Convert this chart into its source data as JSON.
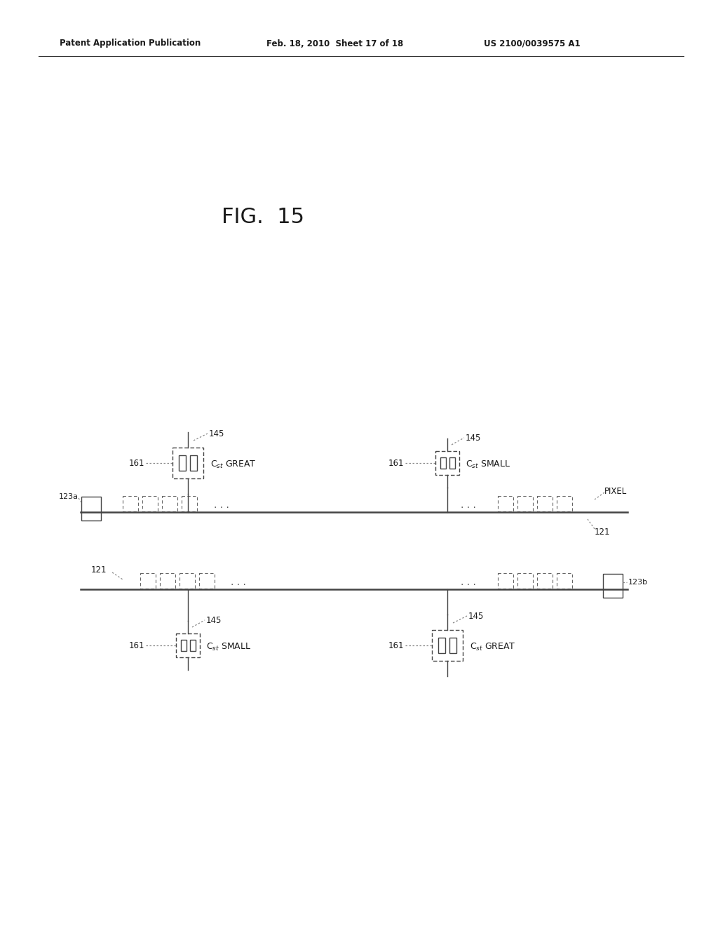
{
  "title": "FIG.  15",
  "header_left": "Patent Application Publication",
  "header_mid": "Feb. 18, 2010  Sheet 17 of 18",
  "header_right": "US 2100/0039575 A1",
  "bg_color": "#ffffff",
  "text_color": "#1a1a1a",
  "line_color": "#444444",
  "dot_color": "#888888"
}
